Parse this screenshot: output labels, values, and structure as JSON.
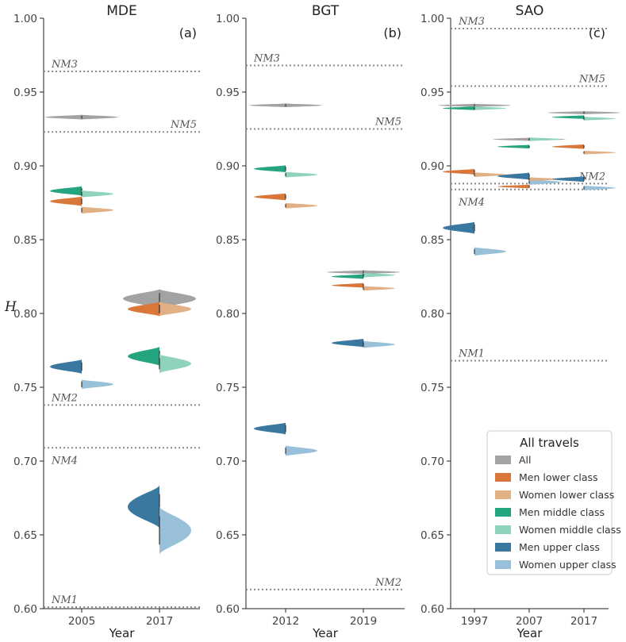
{
  "chart_data": {
    "type": "violin",
    "ylabel": "H",
    "ylim": [
      0.6,
      1.0
    ],
    "yticks": [
      "0.60",
      "0.65",
      "0.70",
      "0.75",
      "0.80",
      "0.85",
      "0.90",
      "0.95",
      "1.00"
    ],
    "xlabel": "Year",
    "legend": {
      "title": "All travels",
      "position": "bottom-right",
      "entries": [
        {
          "key": "all",
          "label": "All",
          "color": "#a3a3a3"
        },
        {
          "key": "men_lower",
          "label": "Men lower class",
          "color": "#d9773a"
        },
        {
          "key": "women_lower",
          "label": "Women lower class",
          "color": "#e2b085"
        },
        {
          "key": "men_middle",
          "label": "Men middle class",
          "color": "#24a57f"
        },
        {
          "key": "women_middle",
          "label": "Women middle class",
          "color": "#8fd3bd"
        },
        {
          "key": "men_upper",
          "label": "Men upper class",
          "color": "#3a78a0"
        },
        {
          "key": "women_upper",
          "label": "Women upper class",
          "color": "#98c1d9"
        }
      ]
    },
    "panels": [
      {
        "title": "MDE",
        "label": "(a)",
        "categories": [
          "2005",
          "2017"
        ],
        "reference_lines": [
          {
            "name": "NM3",
            "value": 0.964,
            "label_side": "left"
          },
          {
            "name": "NM5",
            "value": 0.923,
            "label_side": "right"
          },
          {
            "name": "NM2",
            "value": 0.738,
            "label_side": "left"
          },
          {
            "name": "NM4",
            "value": 0.709,
            "label_side": "left-below"
          },
          {
            "name": "NM1",
            "value": 0.601,
            "label_side": "left"
          }
        ],
        "violins": [
          {
            "cat": "2005",
            "series": "all",
            "median": 0.933,
            "spread": 0.001,
            "full": true
          },
          {
            "cat": "2005",
            "series": "men_middle",
            "median": 0.883,
            "spread": 0.002
          },
          {
            "cat": "2005",
            "series": "women_middle",
            "median": 0.881,
            "spread": 0.0015
          },
          {
            "cat": "2005",
            "series": "men_lower",
            "median": 0.876,
            "spread": 0.002
          },
          {
            "cat": "2005",
            "series": "women_lower",
            "median": 0.87,
            "spread": 0.0015
          },
          {
            "cat": "2005",
            "series": "men_upper",
            "median": 0.764,
            "spread": 0.003
          },
          {
            "cat": "2005",
            "series": "women_upper",
            "median": 0.752,
            "spread": 0.002
          },
          {
            "cat": "2017",
            "series": "all",
            "median": 0.81,
            "spread": 0.004,
            "full": true
          },
          {
            "cat": "2017",
            "series": "men_lower",
            "median": 0.803,
            "spread": 0.003
          },
          {
            "cat": "2017",
            "series": "women_lower",
            "median": 0.803,
            "spread": 0.003
          },
          {
            "cat": "2017",
            "series": "men_middle",
            "median": 0.771,
            "spread": 0.004
          },
          {
            "cat": "2017",
            "series": "women_middle",
            "median": 0.766,
            "spread": 0.004
          },
          {
            "cat": "2017",
            "series": "men_upper",
            "median": 0.669,
            "spread": 0.009
          },
          {
            "cat": "2017",
            "series": "women_upper",
            "median": 0.653,
            "spread": 0.01
          }
        ]
      },
      {
        "title": "BGT",
        "label": "(b)",
        "categories": [
          "2012",
          "2019"
        ],
        "reference_lines": [
          {
            "name": "NM3",
            "value": 0.968,
            "label_side": "left"
          },
          {
            "name": "NM5",
            "value": 0.925,
            "label_side": "right"
          },
          {
            "name": "NM2",
            "value": 0.613,
            "label_side": "right"
          }
        ],
        "violins": [
          {
            "cat": "2012",
            "series": "all",
            "median": 0.941,
            "spread": 0.0008,
            "full": true
          },
          {
            "cat": "2012",
            "series": "men_middle",
            "median": 0.898,
            "spread": 0.0015
          },
          {
            "cat": "2012",
            "series": "women_middle",
            "median": 0.894,
            "spread": 0.0012
          },
          {
            "cat": "2012",
            "series": "men_lower",
            "median": 0.879,
            "spread": 0.0015
          },
          {
            "cat": "2012",
            "series": "women_lower",
            "median": 0.873,
            "spread": 0.0012
          },
          {
            "cat": "2012",
            "series": "men_upper",
            "median": 0.722,
            "spread": 0.0025
          },
          {
            "cat": "2012",
            "series": "women_upper",
            "median": 0.707,
            "spread": 0.0022
          },
          {
            "cat": "2019",
            "series": "all",
            "median": 0.828,
            "spread": 0.0008,
            "full": true
          },
          {
            "cat": "2019",
            "series": "men_middle",
            "median": 0.825,
            "spread": 0.001
          },
          {
            "cat": "2019",
            "series": "women_middle",
            "median": 0.826,
            "spread": 0.001
          },
          {
            "cat": "2019",
            "series": "men_lower",
            "median": 0.819,
            "spread": 0.001
          },
          {
            "cat": "2019",
            "series": "women_lower",
            "median": 0.817,
            "spread": 0.001
          },
          {
            "cat": "2019",
            "series": "men_upper",
            "median": 0.78,
            "spread": 0.0018
          },
          {
            "cat": "2019",
            "series": "women_upper",
            "median": 0.779,
            "spread": 0.0015
          }
        ]
      },
      {
        "title": "SAO",
        "label": "(c)",
        "categories": [
          "1997",
          "2007",
          "2017"
        ],
        "reference_lines": [
          {
            "name": "NM3",
            "value": 0.993,
            "label_side": "left"
          },
          {
            "name": "NM5",
            "value": 0.954,
            "label_side": "right"
          },
          {
            "name": "NM2",
            "value": 0.888,
            "label_side": "right"
          },
          {
            "name": "NM4",
            "value": 0.884,
            "label_side": "left-below"
          },
          {
            "name": "NM1",
            "value": 0.768,
            "label_side": "left"
          }
        ],
        "violins": [
          {
            "cat": "1997",
            "series": "all",
            "median": 0.941,
            "spread": 0.0006,
            "full": true
          },
          {
            "cat": "1997",
            "series": "men_middle",
            "median": 0.939,
            "spread": 0.0008
          },
          {
            "cat": "1997",
            "series": "women_middle",
            "median": 0.939,
            "spread": 0.0008
          },
          {
            "cat": "1997",
            "series": "men_lower",
            "median": 0.896,
            "spread": 0.0012
          },
          {
            "cat": "1997",
            "series": "women_lower",
            "median": 0.894,
            "spread": 0.001
          },
          {
            "cat": "1997",
            "series": "men_upper",
            "median": 0.858,
            "spread": 0.0025
          },
          {
            "cat": "1997",
            "series": "women_upper",
            "median": 0.842,
            "spread": 0.0018
          },
          {
            "cat": "2007",
            "series": "all",
            "median": 0.918,
            "spread": 0.0005,
            "full": true
          },
          {
            "cat": "2007",
            "series": "men_middle",
            "median": 0.913,
            "spread": 0.0008
          },
          {
            "cat": "2007",
            "series": "women_middle",
            "median": 0.918,
            "spread": 0.0008
          },
          {
            "cat": "2007",
            "series": "men_upper",
            "median": 0.893,
            "spread": 0.0015
          },
          {
            "cat": "2007",
            "series": "women_upper",
            "median": 0.889,
            "spread": 0.0012
          },
          {
            "cat": "2007",
            "series": "men_lower",
            "median": 0.886,
            "spread": 0.0008
          },
          {
            "cat": "2007",
            "series": "women_lower",
            "median": 0.891,
            "spread": 0.0008
          },
          {
            "cat": "2017",
            "series": "all",
            "median": 0.936,
            "spread": 0.0005,
            "full": true
          },
          {
            "cat": "2017",
            "series": "men_middle",
            "median": 0.933,
            "spread": 0.0008
          },
          {
            "cat": "2017",
            "series": "women_middle",
            "median": 0.932,
            "spread": 0.0008
          },
          {
            "cat": "2017",
            "series": "men_lower",
            "median": 0.913,
            "spread": 0.001
          },
          {
            "cat": "2017",
            "series": "women_lower",
            "median": 0.909,
            "spread": 0.0008
          },
          {
            "cat": "2017",
            "series": "men_upper",
            "median": 0.891,
            "spread": 0.0012
          },
          {
            "cat": "2017",
            "series": "women_upper",
            "median": 0.885,
            "spread": 0.001
          }
        ]
      }
    ]
  }
}
